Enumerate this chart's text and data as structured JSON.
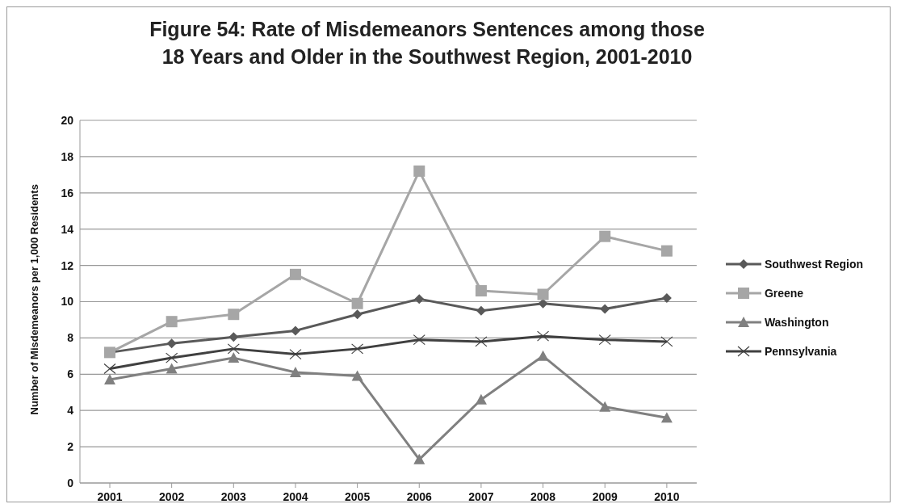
{
  "chart_data": {
    "type": "line",
    "title": "Figure 54: Rate of Misdemeanors Sentences among those 18 Years and Older in the Southwest Region, 2001-2010",
    "ylabel": "Number of Misdemeanors per 1,000 Residents",
    "categories": [
      "2001",
      "2002",
      "2003",
      "2004",
      "2005",
      "2006",
      "2007",
      "2008",
      "2009",
      "2010"
    ],
    "series": [
      {
        "name": "Southwest Region",
        "color": "#595959",
        "marker": "diamond",
        "values": [
          7.2,
          7.7,
          8.05,
          8.4,
          9.3,
          10.15,
          9.5,
          9.9,
          9.6,
          10.2
        ]
      },
      {
        "name": "Greene",
        "color": "#a6a6a6",
        "marker": "square",
        "values": [
          7.2,
          8.9,
          9.3,
          11.5,
          9.9,
          17.2,
          10.6,
          10.4,
          13.6,
          12.8
        ]
      },
      {
        "name": "Washington",
        "color": "#808080",
        "marker": "triangle",
        "values": [
          5.7,
          6.3,
          6.9,
          6.1,
          5.9,
          1.3,
          4.6,
          7.0,
          4.2,
          3.6
        ]
      },
      {
        "name": "Pennsylvania",
        "color": "#404040",
        "marker": "cross",
        "values": [
          6.3,
          6.9,
          7.4,
          7.1,
          7.4,
          7.9,
          7.8,
          8.1,
          7.9,
          7.8
        ]
      }
    ],
    "ylim": [
      0,
      20
    ],
    "yticks": [
      0,
      2,
      4,
      6,
      8,
      10,
      12,
      14,
      16,
      18,
      20
    ],
    "grid": "y",
    "legend": "right",
    "line_style": "solid"
  }
}
